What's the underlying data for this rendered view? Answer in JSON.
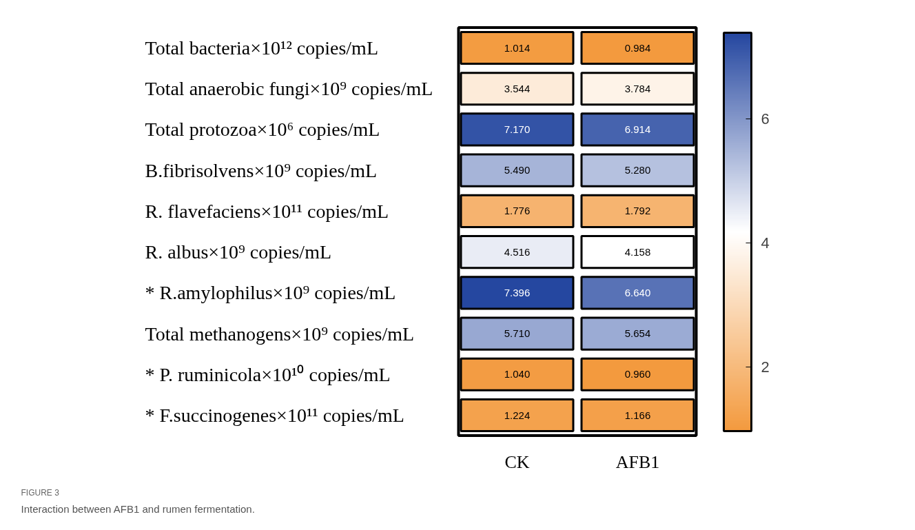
{
  "chart_data": {
    "type": "heatmap",
    "title": "FIGURE 3",
    "subtitle": "Interaction between AFB1 and rumen fermentation.",
    "categories": [
      "CK",
      "AFB1"
    ],
    "y_categories": [
      "Total bacteria×10¹² copies/mL",
      "Total anaerobic fungi×10⁹ copies/mL",
      "Total protozoa×10⁶ copies/mL",
      "B.fibrisolvens×10⁹ copies/mL",
      "R. flavefaciens×10¹¹ copies/mL",
      "R. albus×10⁹ copies/mL",
      "* R.amylophilus×10⁹ copies/mL",
      "Total methanogens×10⁹ copies/mL",
      "* P. ruminicola×10¹⁰ copies/mL",
      "* F.succinogenes×10¹¹ copies/mL"
    ],
    "cells": [
      [
        1.014,
        0.984
      ],
      [
        3.544,
        3.784
      ],
      [
        7.17,
        6.914
      ],
      [
        5.49,
        5.28
      ],
      [
        1.776,
        1.792
      ],
      [
        4.516,
        4.158
      ],
      [
        7.396,
        6.64
      ],
      [
        5.71,
        5.654
      ],
      [
        1.04,
        0.96
      ],
      [
        1.224,
        1.166
      ]
    ],
    "cell_labels": [
      [
        "1.014",
        "0.984"
      ],
      [
        "3.544",
        "3.784"
      ],
      [
        "7.170",
        "6.914"
      ],
      [
        "5.490",
        "5.280"
      ],
      [
        "1.776",
        "1.792"
      ],
      [
        "4.516",
        "4.158"
      ],
      [
        "7.396",
        "6.640"
      ],
      [
        "5.710",
        "5.654"
      ],
      [
        "1.040",
        "0.960"
      ],
      [
        "1.224",
        "1.166"
      ]
    ],
    "data_labels": true,
    "clim": [
      0.96,
      7.396
    ],
    "cticks": [
      2,
      4,
      6
    ]
  }
}
